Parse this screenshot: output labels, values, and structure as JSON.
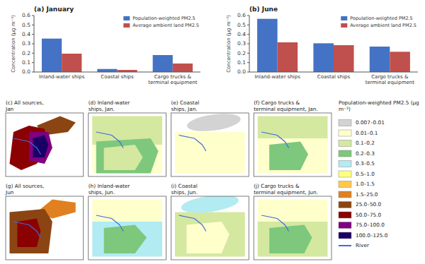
{
  "chart_data": [
    {
      "type": "bar",
      "title": "(a) January",
      "categories": [
        "Inland-water ships",
        "Coastal ships",
        "Cargo trucks &\nterminal equipment"
      ],
      "series": [
        {
          "name": "Population-weighted PM2.5",
          "color": "#4472C4",
          "values": [
            0.355,
            0.032,
            0.18
          ]
        },
        {
          "name": "Average ambient land PM2.5",
          "color": "#C0504D",
          "values": [
            0.195,
            0.022,
            0.09
          ]
        }
      ],
      "ylabel": "Concentration (μg m⁻³)",
      "ylim": [
        0,
        0.6
      ],
      "yticks": [
        {
          "value": 0,
          "label": "0.0"
        },
        0.1,
        0.2,
        0.3,
        0.4,
        0.5,
        0.6
      ],
      "grid": false,
      "legend": "upper right"
    },
    {
      "type": "bar",
      "title": "(b) June",
      "categories": [
        "Inland-water ships",
        "Coastal ships",
        "Cargo trucks &\nterminal equipment"
      ],
      "series": [
        {
          "name": "Population-weighted PM2.5",
          "color": "#4472C4",
          "values": [
            0.565,
            0.305,
            0.27
          ]
        },
        {
          "name": "Average ambient land PM2.5",
          "color": "#C0504D",
          "values": [
            0.315,
            0.285,
            0.215
          ]
        }
      ],
      "ylabel": "Concentration (μg m⁻³)",
      "ylim": [
        0,
        0.6
      ],
      "yticks": [
        {
          "value": 0,
          "label": "0.0"
        },
        0.1,
        0.2,
        0.3,
        0.4,
        0.5,
        0.6
      ],
      "grid": false,
      "legend": "upper right"
    },
    {
      "type": "map",
      "title": "Population-weighted PM2.5 (μg m⁻³)",
      "annotations": [
        "(c) All sources,\nJan",
        "(d) Inland-water\nships, Jan.",
        "(e) Coastal\nships, Jan.",
        "(f) Cargo trucks &\nterminal equipment, Jan.",
        "(g) All sources,\nJun",
        "(h) Inland-water\nships, Jun.",
        "(i) Coastal\nships, Jun.",
        "(j) Cargo trucks &\nterminal equipment, Jun."
      ],
      "categories": [
        "0.007–0.01",
        "0.01–0.1",
        "0.1–0.2",
        "0.2–0.3",
        "0.3–0.5",
        "0.5–1.0",
        "1.0–1.5",
        "1.5–25.0",
        "25.0–50.0",
        "50.0–75.0",
        "75.0–100.0",
        "100.0–125.0"
      ],
      "colors": [
        "#D3D3D3",
        "#FFFFCC",
        "#D4E8A0",
        "#7DC87C",
        "#B2EBF2",
        "#FFFF80",
        "#FFC84C",
        "#E08020",
        "#8B4513",
        "#8B0000",
        "#800080",
        "#1A0066"
      ],
      "series": [
        {
          "name": "River",
          "color": "#4169E1",
          "type": "line"
        }
      ]
    }
  ]
}
